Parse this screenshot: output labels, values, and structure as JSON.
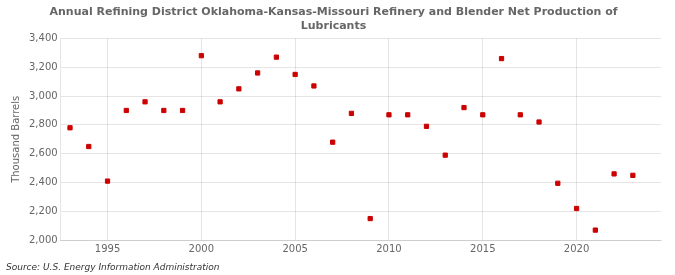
{
  "chart_data": {
    "type": "scatter",
    "title": "Annual Refining District Oklahoma-Kansas-Missouri Refinery and Blender Net Production of\nLubricants",
    "ylabel": "Thousand Barrels",
    "source": "Source: U.S. Energy Information Administration",
    "x": [
      1993,
      1994,
      1995,
      1996,
      1997,
      1998,
      1999,
      2000,
      2001,
      2002,
      2003,
      2004,
      2005,
      2006,
      2007,
      2008,
      2009,
      2010,
      2011,
      2012,
      2013,
      2014,
      2015,
      2016,
      2017,
      2018,
      2019,
      2020,
      2021,
      2022,
      2023
    ],
    "values": [
      2780,
      2650,
      2410,
      2900,
      2960,
      2900,
      2900,
      3280,
      2960,
      3050,
      3160,
      3270,
      3150,
      3070,
      2680,
      2880,
      2150,
      2870,
      2870,
      2790,
      2590,
      2920,
      2870,
      3260,
      2870,
      2820,
      2395,
      2220,
      2070,
      2460,
      2450
    ],
    "color": "#cc0000",
    "marker": "square",
    "xlim": [
      1992.5,
      2024.5
    ],
    "xticks": [
      1995,
      2000,
      2005,
      2010,
      2015,
      2020
    ],
    "ylim": [
      2000,
      3400
    ],
    "yticks": [
      {
        "value": 2000,
        "label": "2,000"
      },
      {
        "value": 2200,
        "label": "2,200"
      },
      {
        "value": 2400,
        "label": "2,400"
      },
      {
        "value": 2600,
        "label": "2,600"
      },
      {
        "value": 2800,
        "label": "2,800"
      },
      {
        "value": 3000,
        "label": "3,000"
      },
      {
        "value": 3200,
        "label": "3,200"
      },
      {
        "value": 3400,
        "label": "3,400"
      }
    ],
    "grid": true
  }
}
